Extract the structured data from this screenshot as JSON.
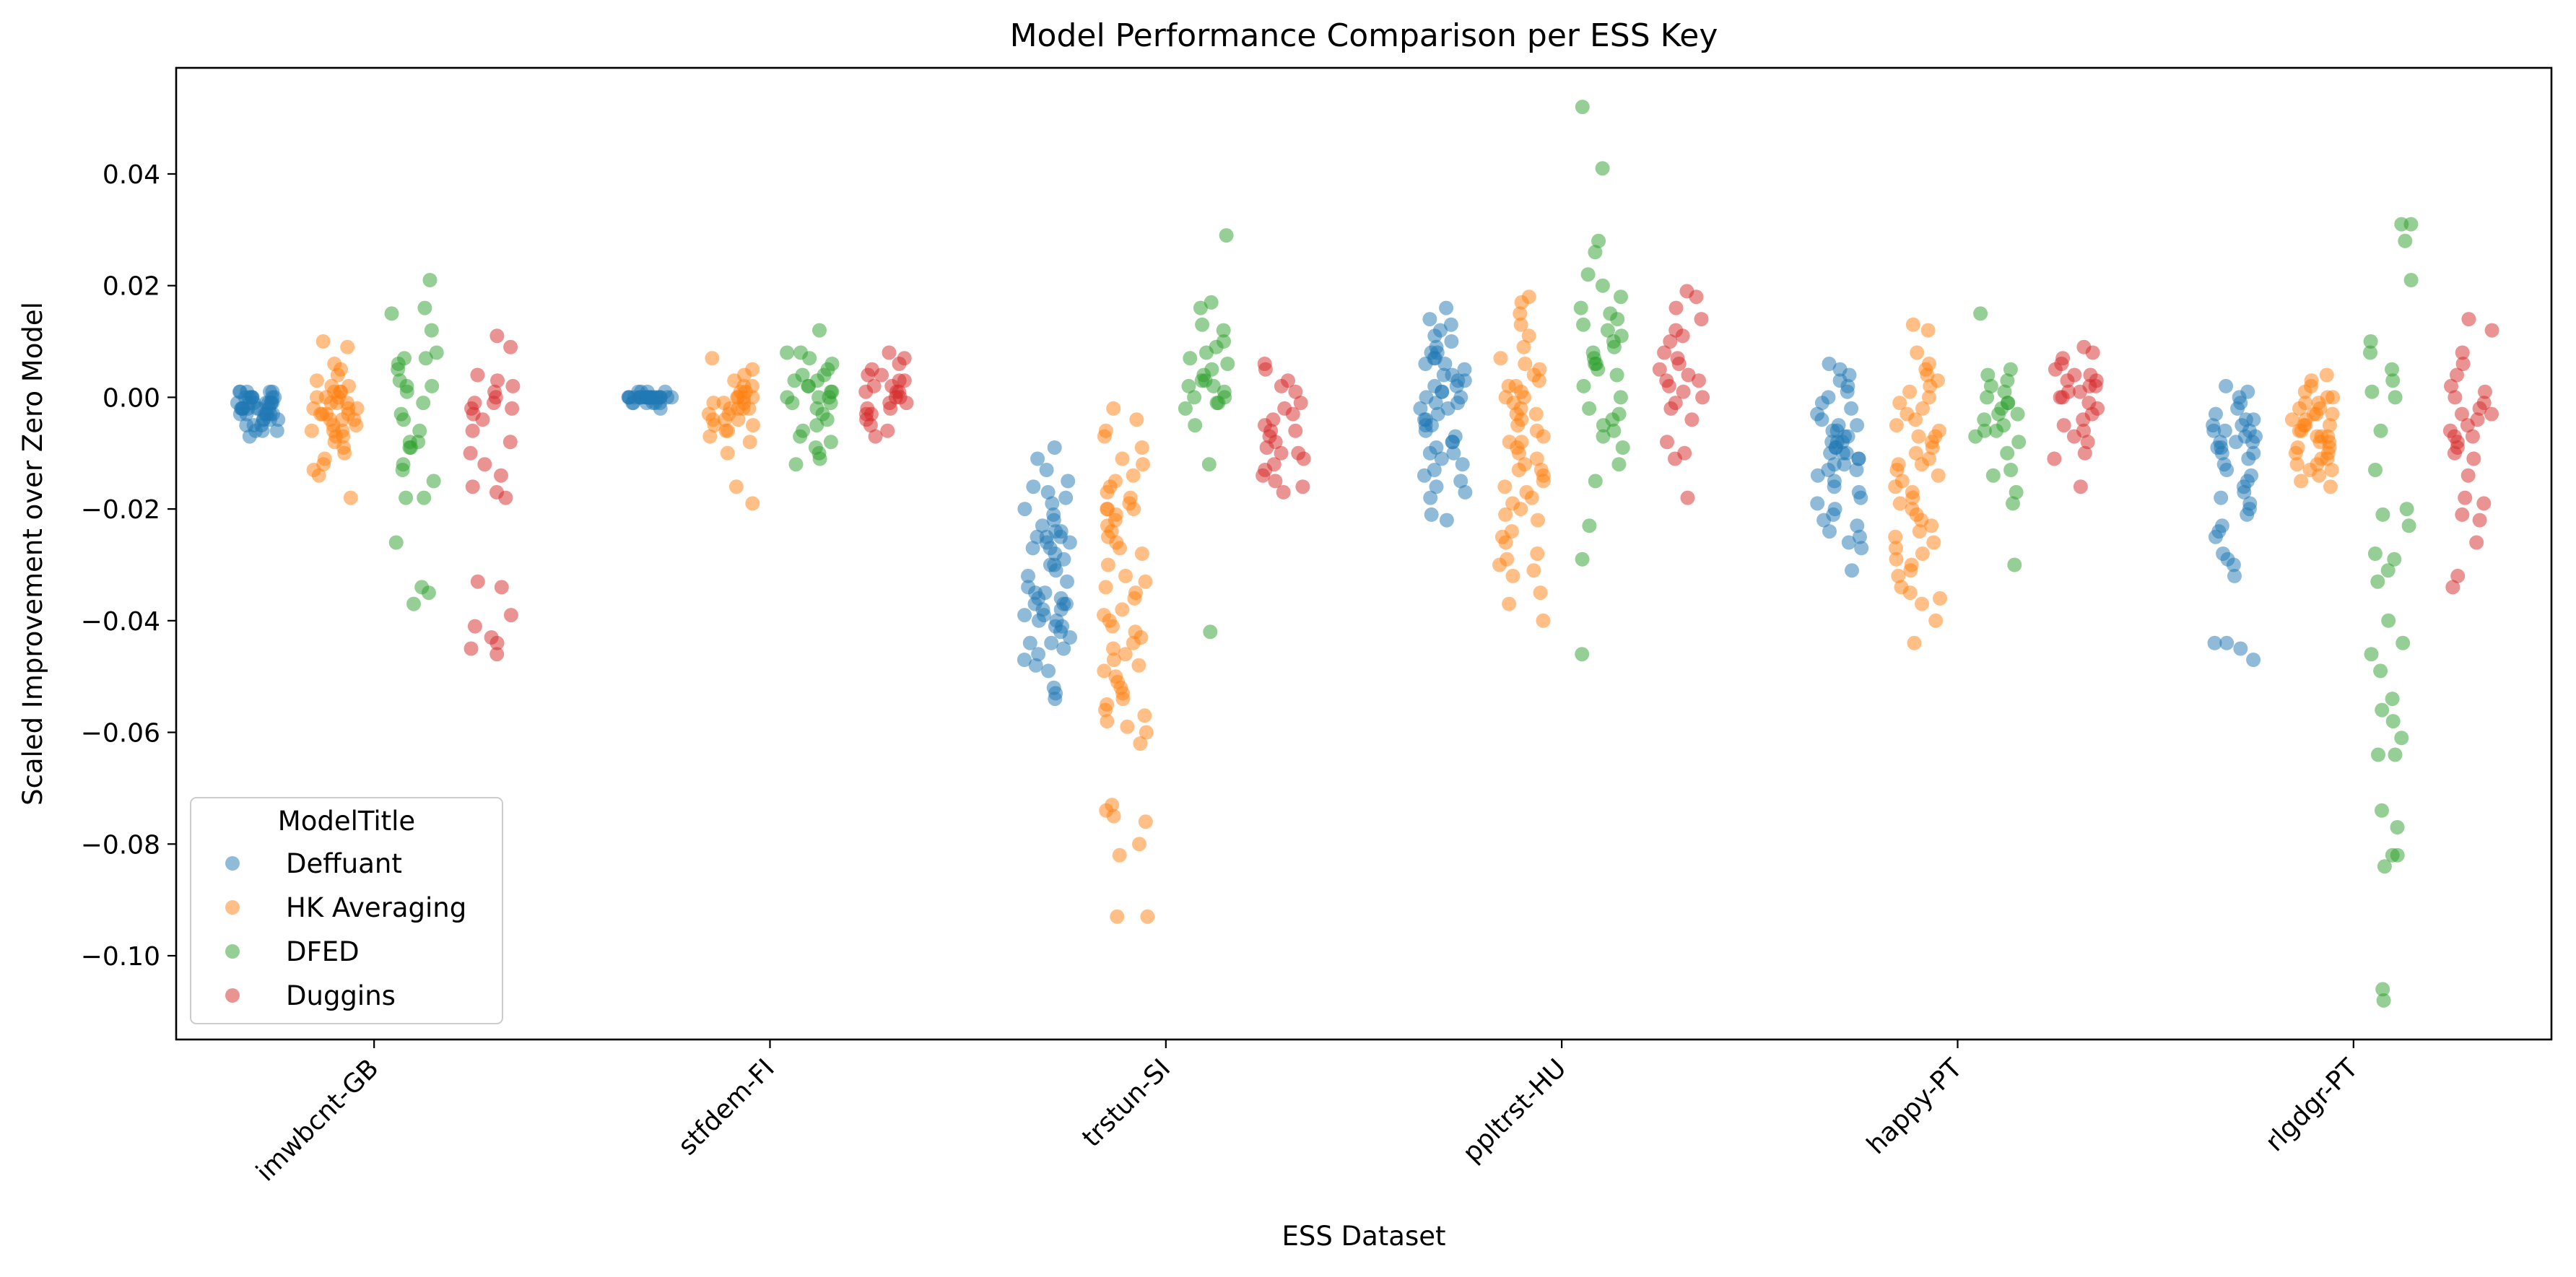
{
  "colors": {
    "Deffuant": "#1f77b4",
    "HK Averaging": "#ff7f0e",
    "DFED": "#2ca02c",
    "Duggins": "#d62728"
  },
  "chart_data": {
    "type": "scatter",
    "subtype": "strip",
    "title": "Model Performance Comparison per ESS Key",
    "xlabel": "ESS Dataset",
    "ylabel": "Scaled Improvement over Zero Model",
    "categories": [
      "imwbcnt-GB",
      "stfdem-FI",
      "trstun-SI",
      "ppltrst-HU",
      "happy-PT",
      "rlgdgr-PT"
    ],
    "ylim": [
      -0.115,
      0.059
    ],
    "yticks": [
      -0.1,
      -0.08,
      -0.06,
      -0.04,
      -0.02,
      0.0,
      0.02,
      0.04
    ],
    "ytick_labels": [
      "−0.10",
      "−0.08",
      "−0.06",
      "−0.04",
      "−0.02",
      "0.00",
      "0.02",
      "0.04"
    ],
    "grid": false,
    "legend": {
      "title": "ModelTitle",
      "placement": "lower-left"
    },
    "series": [
      {
        "name": "Deffuant",
        "values": [
          [
            -0.006,
            -0.005,
            -0.005,
            -0.004,
            -0.004,
            -0.004,
            -0.003,
            -0.003,
            -0.003,
            -0.003,
            -0.003,
            -0.002,
            -0.002,
            -0.002,
            -0.002,
            -0.002,
            -0.002,
            -0.001,
            -0.001,
            -0.001,
            -0.001,
            -0.001,
            -0.001,
            -0.001,
            0.0,
            0.0,
            0.0,
            0.0,
            0.0,
            0.0,
            0.001,
            0.001,
            0.001,
            0.001,
            -0.007,
            -0.006,
            -0.006,
            -0.005,
            -0.003,
            -0.002,
            0.0,
            0.001,
            -0.004,
            -0.003,
            -0.002,
            -0.001
          ],
          [
            -0.002,
            -0.001,
            -0.001,
            -0.001,
            -0.001,
            -0.001,
            0.0,
            0.0,
            0.0,
            0.0,
            0.0,
            0.0,
            0.0,
            0.0,
            0.0,
            0.0,
            0.0,
            0.0,
            0.0,
            0.001,
            0.001,
            0.001,
            0.001,
            0.0,
            -0.001,
            0.0,
            0.0,
            0.0,
            0.0,
            0.0,
            0.0,
            0.0
          ],
          [
            -0.009,
            -0.011,
            -0.013,
            -0.015,
            -0.016,
            -0.017,
            -0.018,
            -0.019,
            -0.02,
            -0.021,
            -0.022,
            -0.023,
            -0.024,
            -0.024,
            -0.025,
            -0.025,
            -0.026,
            -0.026,
            -0.027,
            -0.027,
            -0.028,
            -0.029,
            -0.03,
            -0.031,
            -0.032,
            -0.033,
            -0.034,
            -0.035,
            -0.035,
            -0.036,
            -0.036,
            -0.037,
            -0.037,
            -0.038,
            -0.038,
            -0.039,
            -0.039,
            -0.04,
            -0.04,
            -0.041,
            -0.042,
            -0.043,
            -0.044,
            -0.045,
            -0.046,
            -0.047,
            -0.048,
            -0.049,
            -0.052,
            -0.053,
            -0.054,
            -0.025,
            -0.03,
            -0.037,
            -0.041,
            -0.044
          ],
          [
            0.016,
            0.014,
            0.013,
            0.012,
            0.011,
            0.01,
            0.009,
            0.008,
            0.008,
            0.007,
            0.006,
            0.006,
            0.005,
            0.004,
            0.004,
            0.003,
            0.002,
            0.002,
            0.001,
            0.001,
            0.0,
            0.0,
            -0.001,
            -0.002,
            -0.002,
            -0.003,
            -0.004,
            -0.004,
            -0.005,
            -0.006,
            -0.007,
            -0.008,
            -0.008,
            -0.009,
            -0.01,
            -0.011,
            -0.012,
            -0.013,
            -0.014,
            -0.015,
            -0.016,
            -0.017,
            -0.018,
            -0.021,
            -0.022,
            0.003,
            -0.005,
            -0.01,
            0.007,
            -0.001
          ],
          [
            0.006,
            0.005,
            0.004,
            0.003,
            0.002,
            0.001,
            0.0,
            -0.001,
            -0.002,
            -0.003,
            -0.004,
            -0.005,
            -0.006,
            -0.006,
            -0.007,
            -0.007,
            -0.008,
            -0.008,
            -0.009,
            -0.009,
            -0.01,
            -0.01,
            -0.011,
            -0.011,
            -0.012,
            -0.012,
            -0.013,
            -0.013,
            -0.014,
            -0.015,
            -0.016,
            -0.017,
            -0.018,
            -0.019,
            -0.02,
            -0.021,
            -0.022,
            -0.023,
            -0.024,
            -0.025,
            -0.026,
            -0.027,
            -0.031,
            -0.008,
            -0.01,
            -0.005
          ],
          [
            0.002,
            0.001,
            0.0,
            -0.001,
            -0.002,
            -0.003,
            -0.004,
            -0.004,
            -0.005,
            -0.005,
            -0.006,
            -0.006,
            -0.007,
            -0.007,
            -0.008,
            -0.008,
            -0.009,
            -0.009,
            -0.01,
            -0.01,
            -0.011,
            -0.012,
            -0.013,
            -0.014,
            -0.015,
            -0.016,
            -0.017,
            -0.018,
            -0.019,
            -0.02,
            -0.021,
            -0.023,
            -0.024,
            -0.025,
            -0.028,
            -0.029,
            -0.03,
            -0.032,
            -0.044,
            -0.044,
            -0.045,
            -0.047,
            -0.008,
            -0.006
          ]
        ]
      },
      {
        "name": "HK Averaging",
        "values": [
          [
            0.01,
            0.009,
            0.006,
            0.005,
            0.004,
            0.003,
            0.002,
            0.002,
            0.001,
            0.001,
            0.0,
            0.0,
            0.0,
            -0.001,
            -0.001,
            -0.001,
            -0.002,
            -0.002,
            -0.002,
            -0.003,
            -0.003,
            -0.003,
            -0.004,
            -0.004,
            -0.004,
            -0.005,
            -0.005,
            -0.006,
            -0.006,
            -0.007,
            -0.007,
            -0.008,
            -0.009,
            -0.01,
            -0.011,
            -0.012,
            -0.013,
            -0.014,
            -0.018,
            0.001,
            -0.003,
            -0.006
          ],
          [
            0.007,
            0.005,
            0.004,
            0.003,
            0.002,
            0.002,
            0.001,
            0.001,
            0.0,
            0.0,
            0.0,
            -0.001,
            -0.001,
            -0.001,
            -0.002,
            -0.002,
            -0.002,
            -0.003,
            -0.003,
            -0.004,
            -0.004,
            -0.005,
            -0.005,
            -0.006,
            -0.006,
            -0.007,
            -0.008,
            -0.01,
            -0.016,
            -0.019,
            0.0,
            -0.002,
            -0.004
          ],
          [
            -0.002,
            -0.004,
            -0.006,
            -0.007,
            -0.009,
            -0.011,
            -0.012,
            -0.014,
            -0.015,
            -0.016,
            -0.017,
            -0.018,
            -0.019,
            -0.02,
            -0.02,
            -0.021,
            -0.022,
            -0.023,
            -0.024,
            -0.025,
            -0.026,
            -0.028,
            -0.03,
            -0.032,
            -0.033,
            -0.034,
            -0.035,
            -0.036,
            -0.038,
            -0.039,
            -0.04,
            -0.041,
            -0.042,
            -0.043,
            -0.044,
            -0.045,
            -0.046,
            -0.047,
            -0.048,
            -0.049,
            -0.05,
            -0.051,
            -0.052,
            -0.053,
            -0.054,
            -0.055,
            -0.056,
            -0.057,
            -0.058,
            -0.059,
            -0.06,
            -0.062,
            -0.073,
            -0.074,
            -0.075,
            -0.076,
            -0.08,
            -0.082,
            -0.093,
            -0.093,
            -0.02,
            -0.027
          ],
          [
            0.018,
            0.017,
            0.015,
            0.013,
            0.011,
            0.009,
            0.007,
            0.006,
            0.005,
            0.004,
            0.003,
            0.002,
            0.001,
            0.0,
            0.0,
            -0.001,
            -0.002,
            -0.003,
            -0.004,
            -0.005,
            -0.006,
            -0.007,
            -0.008,
            -0.009,
            -0.01,
            -0.011,
            -0.012,
            -0.013,
            -0.014,
            -0.015,
            -0.016,
            -0.017,
            -0.018,
            -0.019,
            -0.02,
            -0.021,
            -0.022,
            -0.024,
            -0.025,
            -0.026,
            -0.028,
            -0.029,
            -0.03,
            -0.031,
            -0.032,
            -0.035,
            -0.037,
            -0.04,
            -0.003,
            -0.008,
            -0.013,
            0.002
          ],
          [
            0.013,
            0.012,
            0.008,
            0.006,
            0.005,
            0.004,
            0.003,
            0.002,
            0.001,
            0.0,
            -0.001,
            -0.002,
            -0.003,
            -0.004,
            -0.005,
            -0.006,
            -0.007,
            -0.008,
            -0.009,
            -0.01,
            -0.011,
            -0.012,
            -0.013,
            -0.014,
            -0.015,
            -0.016,
            -0.017,
            -0.018,
            -0.019,
            -0.02,
            -0.021,
            -0.022,
            -0.023,
            -0.024,
            -0.025,
            -0.026,
            -0.027,
            -0.028,
            -0.029,
            -0.03,
            -0.031,
            -0.032,
            -0.034,
            -0.035,
            -0.036,
            -0.037,
            -0.04,
            -0.044,
            -0.007,
            -0.012
          ],
          [
            0.004,
            0.003,
            0.002,
            0.001,
            0.0,
            0.0,
            -0.001,
            -0.001,
            -0.002,
            -0.002,
            -0.003,
            -0.003,
            -0.004,
            -0.004,
            -0.005,
            -0.005,
            -0.006,
            -0.006,
            -0.007,
            -0.007,
            -0.008,
            -0.008,
            -0.009,
            -0.009,
            -0.01,
            -0.01,
            -0.011,
            -0.011,
            -0.012,
            -0.012,
            -0.013,
            -0.013,
            -0.014,
            -0.015,
            -0.016,
            -0.005,
            -0.003,
            -0.007
          ]
        ]
      },
      {
        "name": "DFED",
        "values": [
          [
            0.021,
            0.016,
            0.015,
            0.012,
            0.008,
            0.007,
            0.007,
            0.006,
            0.005,
            0.003,
            0.002,
            0.002,
            0.001,
            -0.001,
            -0.003,
            -0.004,
            -0.006,
            -0.008,
            -0.008,
            -0.009,
            -0.009,
            -0.012,
            -0.013,
            -0.015,
            -0.018,
            -0.018,
            -0.026,
            -0.034,
            -0.035,
            -0.037
          ],
          [
            0.012,
            0.008,
            0.008,
            0.007,
            0.006,
            0.005,
            0.004,
            0.003,
            0.003,
            0.002,
            0.002,
            0.001,
            0.001,
            0.0,
            0.0,
            -0.001,
            -0.001,
            -0.002,
            -0.003,
            -0.004,
            -0.005,
            -0.006,
            -0.007,
            -0.008,
            -0.009,
            -0.01,
            -0.011,
            -0.012,
            0.004,
            0.0
          ],
          [
            0.029,
            0.017,
            0.016,
            0.013,
            0.012,
            0.01,
            0.009,
            0.008,
            0.007,
            0.006,
            0.005,
            0.004,
            0.003,
            0.002,
            0.002,
            0.001,
            0.0,
            0.0,
            -0.001,
            -0.001,
            -0.002,
            -0.005,
            -0.012,
            -0.042,
            0.003
          ],
          [
            0.052,
            0.041,
            0.028,
            0.026,
            0.022,
            0.02,
            0.018,
            0.016,
            0.015,
            0.014,
            0.013,
            0.012,
            0.011,
            0.01,
            0.009,
            0.008,
            0.007,
            0.006,
            0.006,
            0.005,
            0.004,
            0.002,
            0.0,
            -0.002,
            -0.003,
            -0.004,
            -0.005,
            -0.006,
            -0.007,
            -0.009,
            -0.012,
            -0.015,
            -0.023,
            -0.029,
            -0.046
          ],
          [
            0.015,
            0.005,
            0.004,
            0.003,
            0.002,
            0.001,
            0.0,
            -0.001,
            -0.002,
            -0.003,
            -0.004,
            -0.005,
            -0.006,
            -0.006,
            -0.007,
            -0.008,
            -0.01,
            -0.013,
            -0.014,
            -0.017,
            -0.019,
            -0.03,
            -0.001,
            -0.003
          ],
          [
            0.031,
            0.031,
            0.028,
            0.021,
            0.01,
            0.008,
            0.005,
            0.003,
            0.001,
            0.0,
            -0.006,
            -0.013,
            -0.02,
            -0.021,
            -0.023,
            -0.028,
            -0.029,
            -0.031,
            -0.033,
            -0.04,
            -0.044,
            -0.046,
            -0.049,
            -0.054,
            -0.056,
            -0.058,
            -0.061,
            -0.064,
            -0.064,
            -0.074,
            -0.077,
            -0.082,
            -0.082,
            -0.084,
            -0.106,
            -0.108
          ]
        ]
      },
      {
        "name": "Duggins",
        "values": [
          [
            0.011,
            0.009,
            0.004,
            0.003,
            0.002,
            0.001,
            0.0,
            -0.001,
            -0.001,
            -0.002,
            -0.002,
            -0.003,
            -0.004,
            -0.006,
            -0.008,
            -0.01,
            -0.012,
            -0.014,
            -0.016,
            -0.017,
            -0.018,
            -0.033,
            -0.034,
            -0.039,
            -0.041,
            -0.043,
            -0.044,
            -0.045,
            -0.046
          ],
          [
            0.008,
            0.007,
            0.006,
            0.005,
            0.004,
            0.004,
            0.003,
            0.002,
            0.002,
            0.001,
            0.001,
            0.0,
            0.0,
            -0.001,
            -0.001,
            -0.002,
            -0.002,
            -0.003,
            -0.004,
            -0.005,
            -0.006,
            -0.007,
            0.003,
            0.001,
            -0.003
          ],
          [
            0.006,
            0.005,
            0.003,
            0.002,
            0.001,
            -0.001,
            -0.002,
            -0.003,
            -0.004,
            -0.005,
            -0.006,
            -0.007,
            -0.008,
            -0.009,
            -0.01,
            -0.011,
            -0.012,
            -0.013,
            -0.014,
            -0.015,
            -0.016,
            -0.017,
            -0.006,
            -0.01
          ],
          [
            0.019,
            0.018,
            0.016,
            0.014,
            0.012,
            0.011,
            0.01,
            0.008,
            0.007,
            0.006,
            0.005,
            0.004,
            0.003,
            0.002,
            0.001,
            0.0,
            -0.001,
            -0.002,
            -0.004,
            -0.008,
            -0.01,
            -0.011,
            -0.018,
            0.003
          ],
          [
            0.009,
            0.008,
            0.007,
            0.006,
            0.005,
            0.004,
            0.003,
            0.003,
            0.002,
            0.002,
            0.001,
            0.0,
            0.0,
            -0.001,
            -0.002,
            -0.003,
            -0.004,
            -0.005,
            -0.006,
            -0.007,
            -0.008,
            -0.01,
            -0.011,
            -0.016,
            0.004,
            0.001
          ],
          [
            0.014,
            0.012,
            0.008,
            0.006,
            0.004,
            0.002,
            0.001,
            0.0,
            -0.001,
            -0.002,
            -0.003,
            -0.004,
            -0.005,
            -0.006,
            -0.007,
            -0.008,
            -0.009,
            -0.01,
            -0.011,
            -0.014,
            -0.018,
            -0.019,
            -0.021,
            -0.022,
            -0.026,
            -0.032,
            -0.034,
            -0.003,
            -0.007
          ]
        ]
      }
    ]
  }
}
